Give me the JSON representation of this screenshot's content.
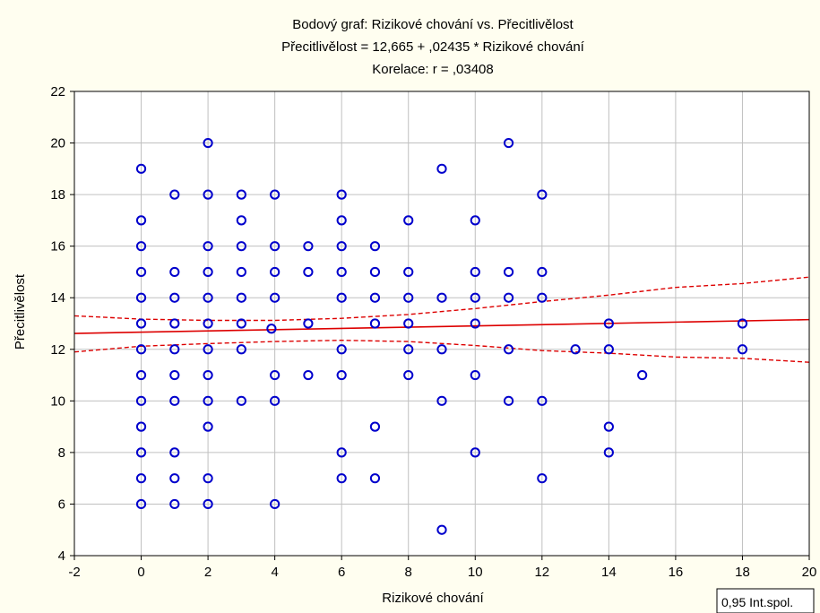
{
  "chart_data": {
    "type": "scatter",
    "title_lines": [
      "Bodový graf: Rizikové chování vs. Přecitlivělost",
      "Přecitlivělost = 12,665 + ,02435 * Rizikové chování",
      "Korelace: r =    ,03408"
    ],
    "xlabel": "Rizikové chování",
    "ylabel": "Přecitlivělost",
    "xlim": [
      -2,
      20
    ],
    "ylim": [
      4,
      22
    ],
    "xticks": [
      -2,
      0,
      2,
      4,
      6,
      8,
      10,
      12,
      14,
      16,
      18,
      20
    ],
    "yticks": [
      4,
      6,
      8,
      10,
      12,
      14,
      16,
      18,
      20,
      22
    ],
    "grid": true,
    "legend_label": "0,95 Int.spol.",
    "legend_position": "bottom-right",
    "regression": {
      "intercept": 12.665,
      "slope": 0.02435,
      "r": 0.03408
    },
    "confidence_band": {
      "level": 0.95,
      "upper": [
        [
          -2,
          13.3
        ],
        [
          0,
          13.17
        ],
        [
          2,
          13.12
        ],
        [
          4,
          13.12
        ],
        [
          6,
          13.2
        ],
        [
          8,
          13.35
        ],
        [
          10,
          13.58
        ],
        [
          12,
          13.85
        ],
        [
          14,
          14.1
        ],
        [
          16,
          14.4
        ],
        [
          18,
          14.55
        ],
        [
          20,
          14.8
        ]
      ],
      "lower": [
        [
          -2,
          11.9
        ],
        [
          0,
          12.12
        ],
        [
          2,
          12.22
        ],
        [
          4,
          12.3
        ],
        [
          6,
          12.35
        ],
        [
          8,
          12.3
        ],
        [
          10,
          12.15
        ],
        [
          12,
          11.95
        ],
        [
          14,
          11.85
        ],
        [
          16,
          11.7
        ],
        [
          18,
          11.65
        ],
        [
          20,
          11.5
        ]
      ]
    },
    "series": [
      {
        "points": [
          [
            0,
            19
          ],
          [
            0,
            17
          ],
          [
            0,
            16
          ],
          [
            0,
            15
          ],
          [
            0,
            14
          ],
          [
            0,
            13
          ],
          [
            0,
            12
          ],
          [
            0,
            11
          ],
          [
            0,
            10
          ],
          [
            0,
            9
          ],
          [
            0,
            8
          ],
          [
            0,
            7
          ],
          [
            0,
            6
          ],
          [
            1,
            18
          ],
          [
            1,
            15
          ],
          [
            1,
            14
          ],
          [
            1,
            13
          ],
          [
            1,
            12
          ],
          [
            1,
            11
          ],
          [
            1,
            10
          ],
          [
            1,
            8
          ],
          [
            1,
            7
          ],
          [
            1,
            6
          ],
          [
            2,
            20
          ],
          [
            2,
            18
          ],
          [
            2,
            16
          ],
          [
            2,
            15
          ],
          [
            2,
            14
          ],
          [
            2,
            13
          ],
          [
            2,
            12
          ],
          [
            2,
            11
          ],
          [
            2,
            10
          ],
          [
            2,
            9
          ],
          [
            2,
            7
          ],
          [
            2,
            6
          ],
          [
            3,
            18
          ],
          [
            3,
            17
          ],
          [
            3,
            16
          ],
          [
            3,
            15
          ],
          [
            3,
            14
          ],
          [
            3,
            13
          ],
          [
            3,
            12
          ],
          [
            3,
            10
          ],
          [
            4,
            18
          ],
          [
            4,
            16
          ],
          [
            4,
            15
          ],
          [
            4,
            14
          ],
          [
            4,
            11
          ],
          [
            4,
            10
          ],
          [
            4,
            6
          ],
          [
            3.9,
            12.8
          ],
          [
            5,
            16
          ],
          [
            5,
            15
          ],
          [
            5,
            13
          ],
          [
            5,
            11
          ],
          [
            6,
            18
          ],
          [
            6,
            17
          ],
          [
            6,
            16
          ],
          [
            6,
            15
          ],
          [
            6,
            14
          ],
          [
            6,
            12
          ],
          [
            6,
            11
          ],
          [
            6,
            8
          ],
          [
            6,
            7
          ],
          [
            7,
            16
          ],
          [
            7,
            15
          ],
          [
            7,
            14
          ],
          [
            7,
            13
          ],
          [
            7,
            9
          ],
          [
            7,
            7
          ],
          [
            8,
            17
          ],
          [
            8,
            15
          ],
          [
            8,
            14
          ],
          [
            8,
            13
          ],
          [
            8,
            12
          ],
          [
            8,
            11
          ],
          [
            9,
            19
          ],
          [
            9,
            14
          ],
          [
            9,
            12
          ],
          [
            9,
            10
          ],
          [
            9,
            5
          ],
          [
            10,
            17
          ],
          [
            10,
            15
          ],
          [
            10,
            14
          ],
          [
            10,
            13
          ],
          [
            10,
            11
          ],
          [
            10,
            8
          ],
          [
            11,
            20
          ],
          [
            11,
            15
          ],
          [
            11,
            14
          ],
          [
            11,
            12
          ],
          [
            11,
            10
          ],
          [
            12,
            18
          ],
          [
            12,
            15
          ],
          [
            12,
            14
          ],
          [
            12,
            10
          ],
          [
            12,
            7
          ],
          [
            13,
            12
          ],
          [
            14,
            13
          ],
          [
            14,
            12
          ],
          [
            14,
            9
          ],
          [
            14,
            8
          ],
          [
            15,
            11
          ],
          [
            18,
            13
          ],
          [
            18,
            12
          ]
        ],
        "color": "#0000cc"
      }
    ],
    "colors": {
      "points": "#0000cc",
      "regression": "#dd0000",
      "band": "#dd0000",
      "grid": "#c0c0c0",
      "plot_background": "#ffffff",
      "page_background": "#fffef0"
    }
  }
}
